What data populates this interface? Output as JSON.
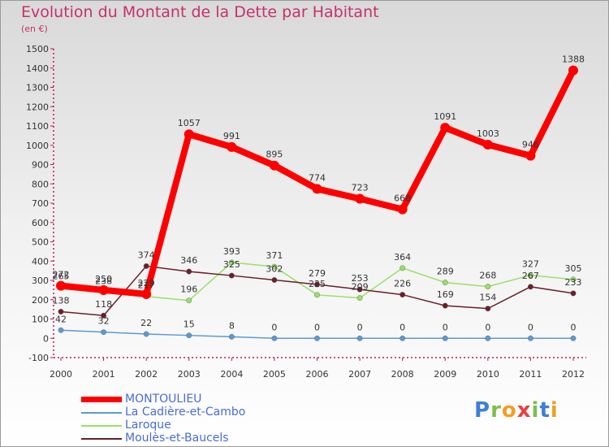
{
  "chart_data": {
    "type": "line",
    "title": "Evolution du Montant de la Dette par Habitant",
    "unit_label": "(en €)",
    "xlabel": "",
    "ylabel": "",
    "categories": [
      "2000",
      "2001",
      "2002",
      "2003",
      "2004",
      "2005",
      "2006",
      "2007",
      "2008",
      "2009",
      "2010",
      "2011",
      "2012"
    ],
    "ylim": [
      -100,
      1500
    ],
    "yticks": [
      -100,
      0,
      100,
      200,
      300,
      400,
      500,
      600,
      700,
      800,
      900,
      1000,
      1100,
      1200,
      1300,
      1400,
      1500
    ],
    "grid": false,
    "legend_position": "bottom-left",
    "series": [
      {
        "name": "MONTOULIEU",
        "color": "#ff0000",
        "values": [
          272,
          250,
          229,
          1057,
          991,
          895,
          774,
          723,
          668,
          1091,
          1003,
          946,
          1388
        ]
      },
      {
        "name": "La Cadière-et-Cambo",
        "color": "#5a9bd5",
        "values": [
          42,
          32,
          22,
          15,
          8,
          0,
          0,
          0,
          0,
          0,
          0,
          0,
          0
        ]
      },
      {
        "name": "Laroque",
        "color": "#99e066",
        "values": [
          265,
          238,
          217,
          196,
          393,
          371,
          225,
          209,
          364,
          289,
          268,
          327,
          305
        ]
      },
      {
        "name": "Moulès-et-Baucels",
        "color": "#6b1f2a",
        "values": [
          138,
          118,
          374,
          346,
          325,
          302,
          279,
          253,
          226,
          169,
          154,
          267,
          233
        ]
      }
    ]
  },
  "branding": {
    "logo_letters": [
      "P",
      "r",
      "o",
      "x",
      "i",
      "t",
      "i"
    ],
    "logo_colors": [
      "#3d7fd6",
      "#7cc04a",
      "#f0a020",
      "#e94040",
      "#7cc04a",
      "#3d7fd6",
      "#f0a020"
    ]
  }
}
